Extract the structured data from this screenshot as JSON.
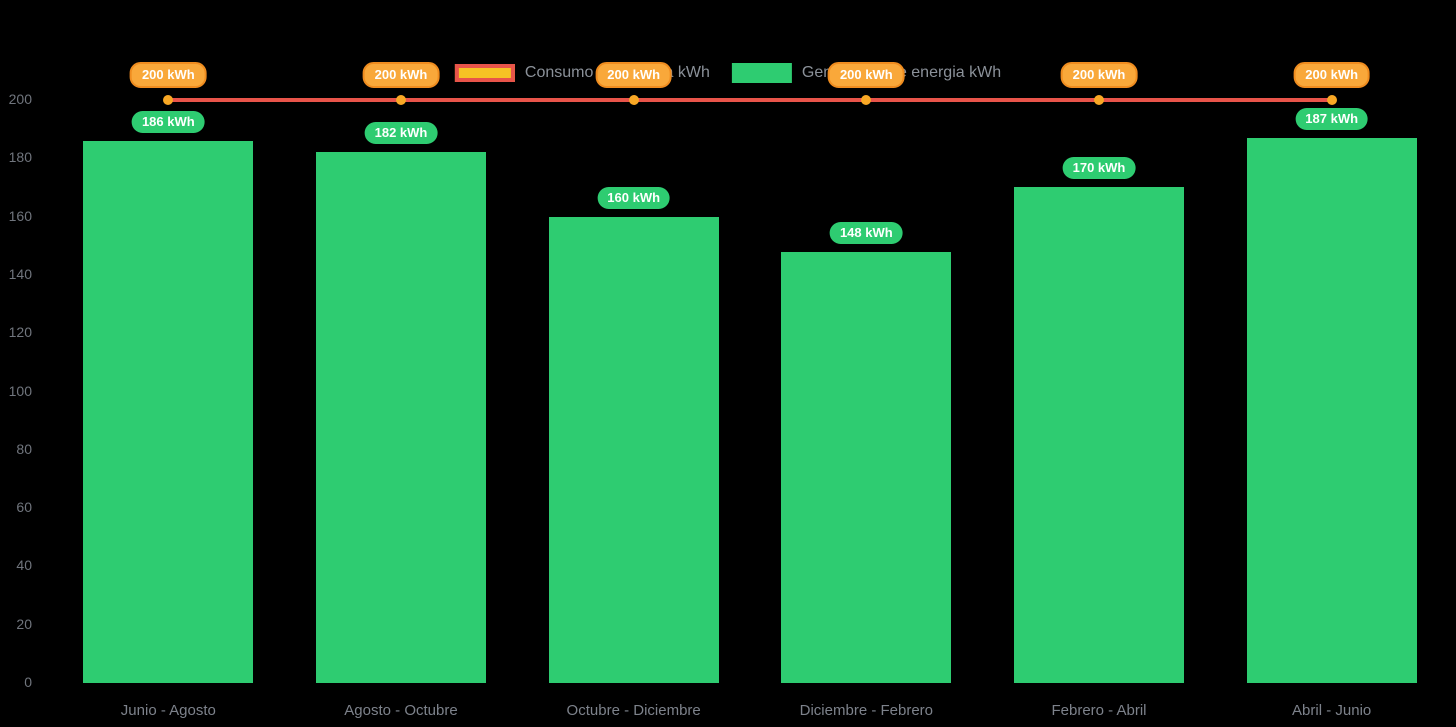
{
  "chart_data": {
    "type": "bar",
    "categories": [
      "Junio - Agosto",
      "Agosto - Octubre",
      "Octubre - Diciembre",
      "Diciembre - Febrero",
      "Febrero - Abril",
      "Abril - Junio"
    ],
    "series": [
      {
        "name": "Consumo de energia kWh",
        "type": "line",
        "values": [
          200,
          200,
          200,
          200,
          200,
          200
        ],
        "color": "#e8544a",
        "marker_color": "#f9a825"
      },
      {
        "name": "Generacion de energia kWh",
        "type": "bar",
        "values": [
          186,
          182,
          160,
          148,
          170,
          187
        ],
        "color": "#2ecc71"
      }
    ],
    "bar_labels": [
      "186 kWh",
      "182 kWh",
      "160 kWh",
      "148 kWh",
      "170 kWh",
      "187 kWh"
    ],
    "line_labels": [
      "200 kWh",
      "200 kWh",
      "200 kWh",
      "200 kWh",
      "200 kWh",
      "200 kWh"
    ],
    "yticks": [
      0,
      20,
      40,
      60,
      80,
      100,
      120,
      140,
      160,
      180,
      200
    ],
    "ylim": [
      0,
      200
    ],
    "grid": false,
    "legend_position": "top",
    "colors": {
      "background": "#000000",
      "bar_fill": "#2ecc71",
      "line_stroke": "#e8544a",
      "marker_fill": "#f9a825",
      "green_pill_bg": "#2ecc71",
      "orange_pill_bg": "#f9a83a",
      "orange_pill_border": "#ef8c1f",
      "axis_text": "#70757d",
      "legend_text": "#8b9199",
      "consumo_swatch_fill": "#f6c324",
      "consumo_swatch_border": "#e8544a"
    }
  }
}
